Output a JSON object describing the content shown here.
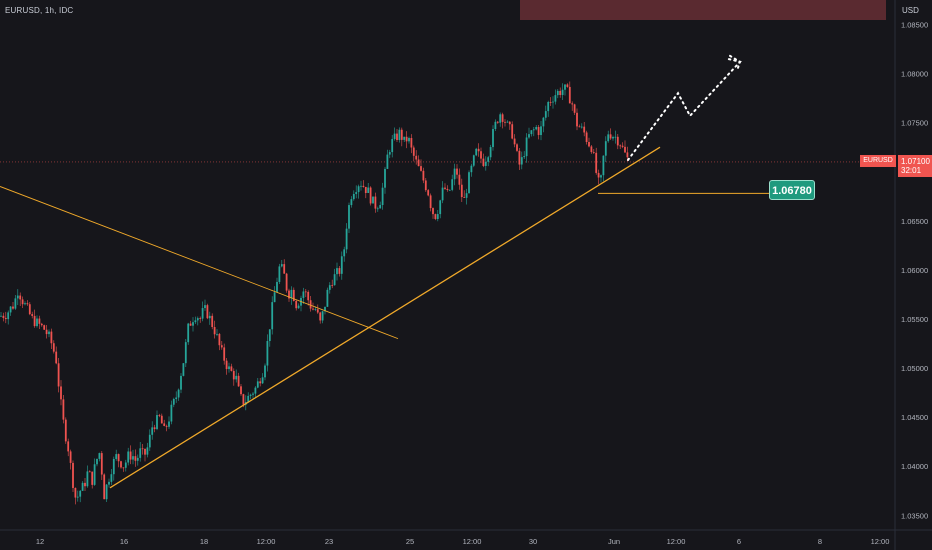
{
  "header": {
    "symbol": "EURUSD",
    "interval": "1h",
    "exchange": "IDC",
    "currency": "USD"
  },
  "price_tag": {
    "symbol": "EURUSD",
    "price": "1.07100",
    "countdown": "32:01"
  },
  "level_tag": {
    "value": "1.06780"
  },
  "colors": {
    "background": "#16161b",
    "up": "#26a69a",
    "down": "#ef5350",
    "trendline": "#f0a92a",
    "resistance_zone": "#5a2a30",
    "level_tag": "#1f9a7e",
    "price_tag": "#f05550"
  },
  "chart_data": {
    "type": "candlestick",
    "title": "EURUSD, 1h, IDC",
    "y_axis": {
      "unit": "USD",
      "ticks": [
        "1.08500",
        "1.08000",
        "1.07500",
        "1.07000",
        "1.06500",
        "1.06000",
        "1.05500",
        "1.05000",
        "1.04500",
        "1.04000",
        "1.03500"
      ],
      "range": [
        1.0335,
        1.0875
      ]
    },
    "x_axis": {
      "ticks": [
        "12",
        "16",
        "18",
        "12:00",
        "23",
        "25",
        "12:00",
        "30",
        "Jun",
        "12:00",
        "6",
        "8",
        "12:00"
      ]
    },
    "price_path": [
      [
        0,
        1.0553
      ],
      [
        6,
        1.0555
      ],
      [
        10,
        1.056
      ],
      [
        14,
        1.0565
      ],
      [
        18,
        1.058
      ],
      [
        22,
        1.057
      ],
      [
        27,
        1.056
      ],
      [
        32,
        1.055
      ],
      [
        38,
        1.0545
      ],
      [
        44,
        1.054
      ],
      [
        50,
        1.053
      ],
      [
        56,
        1.051
      ],
      [
        60,
        1.047
      ],
      [
        64,
        1.044
      ],
      [
        68,
        1.042
      ],
      [
        72,
        1.039
      ],
      [
        76,
        1.0365
      ],
      [
        80,
        1.0375
      ],
      [
        84,
        1.038
      ],
      [
        88,
        1.0395
      ],
      [
        92,
        1.0385
      ],
      [
        96,
        1.0405
      ],
      [
        100,
        1.0415
      ],
      [
        104,
        1.037
      ],
      [
        108,
        1.0385
      ],
      [
        112,
        1.04
      ],
      [
        116,
        1.041
      ],
      [
        120,
        1.0405
      ],
      [
        124,
        1.04
      ],
      [
        128,
        1.041
      ],
      [
        132,
        1.0412
      ],
      [
        136,
        1.0405
      ],
      [
        140,
        1.0415
      ],
      [
        144,
        1.041
      ],
      [
        148,
        1.042
      ],
      [
        152,
        1.044
      ],
      [
        156,
        1.0445
      ],
      [
        160,
        1.045
      ],
      [
        164,
        1.0435
      ],
      [
        168,
        1.0445
      ],
      [
        172,
        1.046
      ],
      [
        176,
        1.047
      ],
      [
        180,
        1.049
      ],
      [
        184,
        1.051
      ],
      [
        188,
        1.054
      ],
      [
        192,
        1.055
      ],
      [
        196,
        1.0555
      ],
      [
        200,
        1.055
      ],
      [
        204,
        1.056
      ],
      [
        208,
        1.0555
      ],
      [
        212,
        1.0545
      ],
      [
        216,
        1.0535
      ],
      [
        220,
        1.052
      ],
      [
        224,
        1.051
      ],
      [
        228,
        1.05
      ],
      [
        232,
        1.0495
      ],
      [
        236,
        1.049
      ],
      [
        240,
        1.047
      ],
      [
        244,
        1.0465
      ],
      [
        248,
        1.047
      ],
      [
        252,
        1.0475
      ],
      [
        256,
        1.048
      ],
      [
        260,
        1.049
      ],
      [
        264,
        1.05
      ],
      [
        268,
        1.053
      ],
      [
        272,
        1.056
      ],
      [
        276,
        1.0585
      ],
      [
        280,
        1.0605
      ],
      [
        284,
        1.0595
      ],
      [
        288,
        1.0575
      ],
      [
        292,
        1.058
      ],
      [
        296,
        1.0565
      ],
      [
        300,
        1.057
      ],
      [
        304,
        1.058
      ],
      [
        308,
        1.057
      ],
      [
        312,
        1.056
      ],
      [
        316,
        1.056
      ],
      [
        320,
        1.0545
      ],
      [
        324,
        1.056
      ],
      [
        328,
        1.058
      ],
      [
        332,
        1.059
      ],
      [
        336,
        1.0595
      ],
      [
        340,
        1.06
      ],
      [
        344,
        1.062
      ],
      [
        348,
        1.066
      ],
      [
        352,
        1.068
      ],
      [
        356,
        1.0685
      ],
      [
        360,
        1.069
      ],
      [
        364,
        1.0685
      ],
      [
        368,
        1.068
      ],
      [
        372,
        1.067
      ],
      [
        376,
        1.0665
      ],
      [
        380,
        1.067
      ],
      [
        384,
        1.069
      ],
      [
        388,
        1.072
      ],
      [
        392,
        1.073
      ],
      [
        396,
        1.0735
      ],
      [
        400,
        1.074
      ],
      [
        404,
        1.073
      ],
      [
        408,
        1.0735
      ],
      [
        412,
        1.072
      ],
      [
        416,
        1.071
      ],
      [
        420,
        1.07
      ],
      [
        424,
        1.069
      ],
      [
        428,
        1.068
      ],
      [
        432,
        1.066
      ],
      [
        436,
        1.0655
      ],
      [
        440,
        1.067
      ],
      [
        444,
        1.0685
      ],
      [
        448,
        1.0675
      ],
      [
        452,
        1.069
      ],
      [
        456,
        1.0705
      ],
      [
        460,
        1.068
      ],
      [
        464,
        1.067
      ],
      [
        468,
        1.069
      ],
      [
        472,
        1.0705
      ],
      [
        476,
        1.072
      ],
      [
        480,
        1.0715
      ],
      [
        484,
        1.071
      ],
      [
        488,
        1.072
      ],
      [
        492,
        1.0735
      ],
      [
        496,
        1.075
      ],
      [
        500,
        1.076
      ],
      [
        504,
        1.0755
      ],
      [
        508,
        1.0745
      ],
      [
        512,
        1.074
      ],
      [
        516,
        1.072
      ],
      [
        520,
        1.0705
      ],
      [
        524,
        1.072
      ],
      [
        528,
        1.0735
      ],
      [
        532,
        1.074
      ],
      [
        536,
        1.0745
      ],
      [
        540,
        1.074
      ],
      [
        544,
        1.0755
      ],
      [
        548,
        1.077
      ],
      [
        552,
        1.0775
      ],
      [
        556,
        1.078
      ],
      [
        560,
        1.0782
      ],
      [
        564,
        1.0785
      ],
      [
        568,
        1.078
      ],
      [
        572,
        1.077
      ],
      [
        576,
        1.075
      ],
      [
        580,
        1.0745
      ],
      [
        584,
        1.074
      ],
      [
        588,
        1.073
      ],
      [
        592,
        1.0725
      ],
      [
        596,
        1.07
      ],
      [
        600,
        1.0682
      ],
      [
        604,
        1.072
      ],
      [
        608,
        1.074
      ],
      [
        612,
        1.0738
      ],
      [
        616,
        1.0735
      ],
      [
        620,
        1.073
      ],
      [
        624,
        1.072
      ],
      [
        628,
        1.0712
      ]
    ],
    "annotations": {
      "ascending_trendline": [
        [
          110,
          1.0378
        ],
        [
          660,
          1.0725
        ]
      ],
      "descending_trendline": [
        [
          0,
          1.0685
        ],
        [
          398,
          1.053
        ]
      ],
      "support_level": {
        "price": 1.0678,
        "from_x": 598,
        "to_x": 770
      },
      "current_price_line": 1.071,
      "projection": [
        [
          628,
          1.0712
        ],
        [
          678,
          1.078
        ],
        [
          690,
          1.0757
        ],
        [
          740,
          1.0812
        ],
        [
          728,
          1.0815
        ]
      ]
    }
  }
}
